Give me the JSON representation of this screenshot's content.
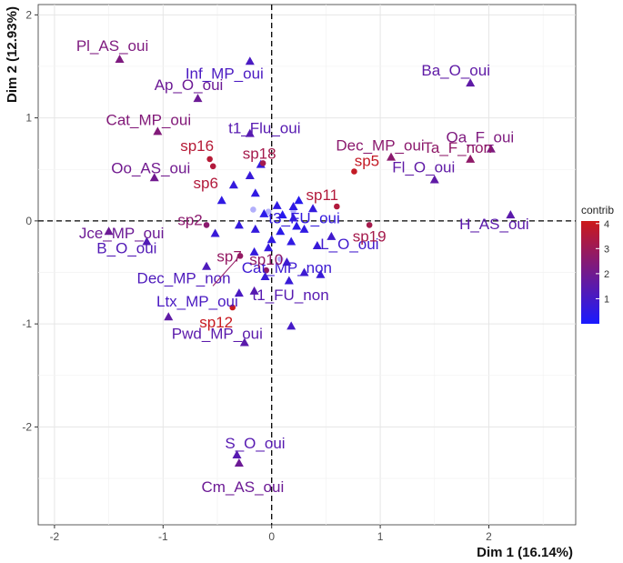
{
  "chart_data": {
    "type": "scatter",
    "xlabel": "Dim 1 (16.14%)",
    "ylabel": "Dim 2 (12.93%)",
    "xlim": [
      -2.15,
      2.8
    ],
    "ylim": [
      -2.95,
      2.1
    ],
    "xticks": [
      -2,
      -1,
      0,
      1,
      2
    ],
    "yticks": [
      -2,
      -1,
      0,
      1,
      2
    ],
    "grid": true,
    "reference_lines": {
      "x": 0,
      "y": 0,
      "style": "dashed"
    },
    "legend": {
      "title": "contrib",
      "ticks": [
        1,
        2,
        3,
        4
      ],
      "range": [
        0,
        4.1
      ],
      "gradient": [
        "#1a1aff",
        "#cc1a1a"
      ],
      "position": "right"
    },
    "labeled_categories": [
      {
        "label": "Pl_AS_oui",
        "x": -1.4,
        "y": 1.57,
        "contrib": 2.3
      },
      {
        "label": "Inf_MP_oui",
        "x": -0.2,
        "y": 1.55,
        "contrib": 1.1
      },
      {
        "label": "Ap_O_oui",
        "x": -0.68,
        "y": 1.19,
        "contrib": 1.9
      },
      {
        "label": "Cat_MP_oui",
        "x": -1.05,
        "y": 0.87,
        "contrib": 2.4
      },
      {
        "label": "Ba_O_oui",
        "x": 1.83,
        "y": 1.34,
        "contrib": 1.6
      },
      {
        "label": "Oa_F_oui",
        "x": 2.02,
        "y": 0.7,
        "contrib": 2.3
      },
      {
        "label": "Ta_F_non",
        "x": 1.83,
        "y": 0.6,
        "contrib": 2.7
      },
      {
        "label": "Dec_MP_oui",
        "x": 1.1,
        "y": 0.62,
        "contrib": 2.6
      },
      {
        "label": "Fl_O_oui",
        "x": 1.5,
        "y": 0.4,
        "contrib": 1.6
      },
      {
        "label": "H_AS_oui",
        "x": 2.2,
        "y": 0.06,
        "contrib": 1.5
      },
      {
        "label": "Oo_AS_oui",
        "x": -1.08,
        "y": 0.42,
        "contrib": 2.0
      },
      {
        "label": "Jce_MP_oui",
        "x": -1.5,
        "y": -0.1,
        "contrib": 1.9
      },
      {
        "label": "B_O_oui",
        "x": -1.15,
        "y": -0.2,
        "contrib": 1.3
      },
      {
        "label": "Dec_MP_non",
        "x": -0.6,
        "y": -0.44,
        "contrib": 1.2
      },
      {
        "label": "Ltx_MP_oui",
        "x": -0.3,
        "y": -0.7,
        "contrib": 1.1
      },
      {
        "label": "Pwd_MP_oui",
        "x": -0.25,
        "y": -1.18,
        "contrib": 1.5
      },
      {
        "label": "Cat_MP_non",
        "x": 0.14,
        "y": -0.4,
        "contrib": 0.8
      },
      {
        "label": "L_O_oui",
        "x": 0.55,
        "y": -0.15,
        "contrib": 0.9
      },
      {
        "label": "t3_FU_oui",
        "x": 0.2,
        "y": 0.03,
        "contrib": 0.6
      },
      {
        "label": "t1_FU_non",
        "x": -0.16,
        "y": -0.68,
        "contrib": 1.4
      },
      {
        "label": "t1_Flu_oui",
        "x": -0.2,
        "y": 0.85,
        "contrib": 1.4
      },
      {
        "label": "S_O_oui",
        "x": -0.32,
        "y": -2.27,
        "contrib": 1.4
      },
      {
        "label": "Cm_AS_oui",
        "x": -0.3,
        "y": -2.35,
        "contrib": 1.9
      }
    ],
    "unlabeled_categories": [
      {
        "x": -0.95,
        "y": -0.93,
        "contrib": 1.6
      },
      {
        "x": 0.18,
        "y": -1.02,
        "contrib": 1.0
      },
      {
        "x": -0.2,
        "y": 0.44,
        "contrib": 0.7
      },
      {
        "x": -0.35,
        "y": 0.35,
        "contrib": 0.6
      },
      {
        "x": -0.46,
        "y": 0.2,
        "contrib": 0.5
      },
      {
        "x": -0.15,
        "y": 0.27,
        "contrib": 0.5
      },
      {
        "x": 0.05,
        "y": 0.15,
        "contrib": 0.5
      },
      {
        "x": 0.2,
        "y": 0.14,
        "contrib": 0.5
      },
      {
        "x": 0.38,
        "y": 0.12,
        "contrib": 0.6
      },
      {
        "x": -0.07,
        "y": 0.07,
        "contrib": 0.4
      },
      {
        "x": 0.1,
        "y": 0.06,
        "contrib": 0.3
      },
      {
        "x": -0.3,
        "y": -0.04,
        "contrib": 0.6
      },
      {
        "x": -0.15,
        "y": -0.08,
        "contrib": 0.6
      },
      {
        "x": 0.08,
        "y": -0.1,
        "contrib": 0.4
      },
      {
        "x": 0.3,
        "y": -0.08,
        "contrib": 0.5
      },
      {
        "x": -0.52,
        "y": -0.12,
        "contrib": 0.7
      },
      {
        "x": 0.0,
        "y": -0.18,
        "contrib": 0.5
      },
      {
        "x": 0.18,
        "y": -0.2,
        "contrib": 0.5
      },
      {
        "x": -0.03,
        "y": -0.26,
        "contrib": 0.6
      },
      {
        "x": 0.42,
        "y": -0.24,
        "contrib": 0.7
      },
      {
        "x": 0.3,
        "y": -0.5,
        "contrib": 0.8
      },
      {
        "x": -0.06,
        "y": -0.54,
        "contrib": 0.7
      },
      {
        "x": 0.16,
        "y": -0.58,
        "contrib": 0.7
      },
      {
        "x": -0.16,
        "y": -0.3,
        "contrib": 0.6
      },
      {
        "x": 0.45,
        "y": -0.52,
        "contrib": 0.7
      },
      {
        "x": 0.25,
        "y": 0.2,
        "contrib": 0.3
      },
      {
        "x": -0.1,
        "y": 0.55,
        "contrib": 0.6
      },
      {
        "x": 0.23,
        "y": -0.05,
        "contrib": 0.4
      }
    ],
    "labeled_individuals": [
      {
        "label": "sp16",
        "x": -0.57,
        "y": 0.6,
        "contrib": 3.6
      },
      {
        "label": "sp6",
        "x": -0.54,
        "y": 0.53,
        "contrib": 3.5
      },
      {
        "label": "sp18",
        "x": -0.08,
        "y": 0.56,
        "contrib": 3.2
      },
      {
        "label": "sp5",
        "x": 0.76,
        "y": 0.48,
        "contrib": 3.9
      },
      {
        "label": "sp11",
        "x": 0.6,
        "y": 0.14,
        "contrib": 3.5
      },
      {
        "label": "sp2",
        "x": -0.6,
        "y": -0.04,
        "contrib": 2.6
      },
      {
        "label": "sp19",
        "x": 0.9,
        "y": -0.04,
        "contrib": 3.2
      },
      {
        "label": "sp7",
        "x": -0.29,
        "y": -0.34,
        "contrib": 2.8
      },
      {
        "label": "sp10",
        "x": -0.05,
        "y": -0.48,
        "contrib": 2.7
      },
      {
        "label": "sp12",
        "x": -0.36,
        "y": -0.84,
        "contrib": 4.0
      }
    ],
    "unlabeled_individuals": [
      {
        "x": -0.17,
        "y": 0.11,
        "contrib": 0.2
      },
      {
        "x": 0.2,
        "y": 0.1,
        "contrib": 0.2
      },
      {
        "x": 0.08,
        "y": -0.37,
        "contrib": 0.2
      },
      {
        "x": -0.03,
        "y": 0.09,
        "contrib": 0.2
      }
    ]
  }
}
